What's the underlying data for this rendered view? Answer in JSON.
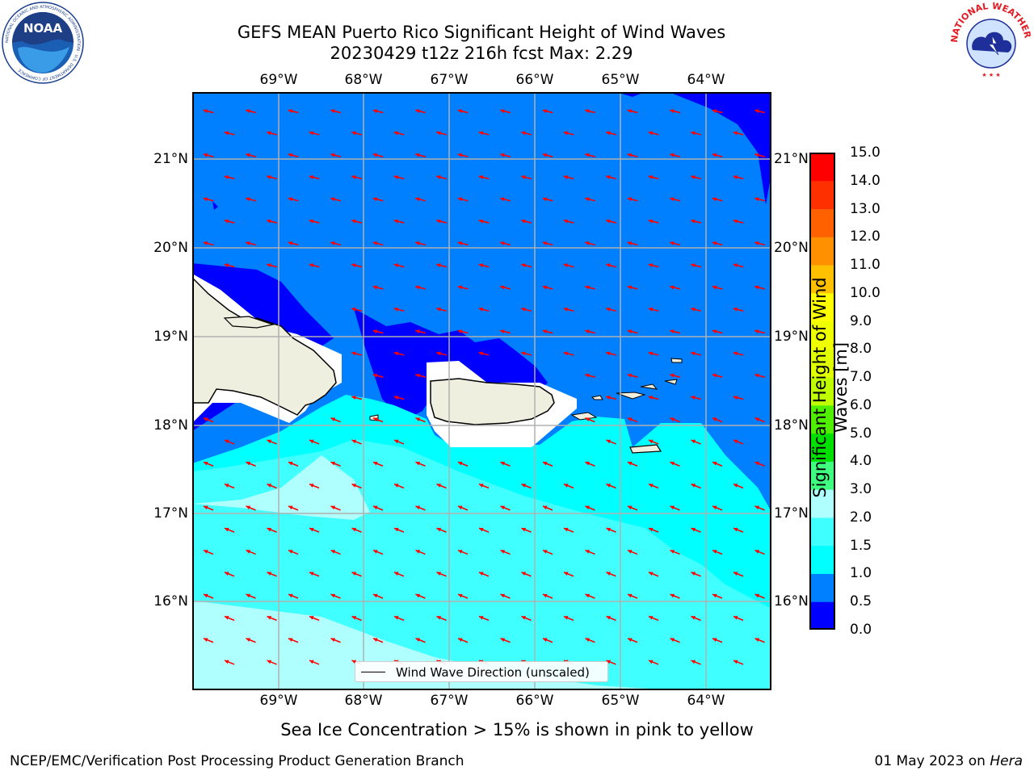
{
  "header": {
    "title_line1": "GEFS MEAN Puerto Rico Significant Height of Wind Waves",
    "title_line2": "20230429 t12z 216h fcst   Max: 2.29"
  },
  "logos": {
    "left": {
      "name": "NOAA",
      "text": "NOAA",
      "ring_text": "NATIONAL OCEANIC AND ATMOSPHERIC ADMINISTRATION · U.S. DEPARTMENT OF COMMERCE"
    },
    "right": {
      "name": "National Weather Service",
      "ring_text": "NATIONAL WEATHER SERVICE"
    }
  },
  "map": {
    "lon_labels": [
      "69°W",
      "68°W",
      "67°W",
      "66°W",
      "65°W",
      "64°W"
    ],
    "lat_labels": [
      "21°N",
      "20°N",
      "19°N",
      "18°N",
      "17°N",
      "16°N"
    ],
    "legend_label": "Wind Wave Direction (unscaled)",
    "colors": {
      "land": "#efefe0",
      "arrow": "#ff0000",
      "coast": "#000000",
      "grid": "#b0b0b0"
    }
  },
  "colorbar": {
    "label_line1": "Significant Height of Wind",
    "label_line2": "Waves [m]",
    "ticks": [
      "15.0",
      "14.0",
      "13.0",
      "12.0",
      "11.0",
      "10.0",
      "9.0",
      "8.0",
      "7.0",
      "6.0",
      "5.0",
      "4.0",
      "3.0",
      "2.0",
      "1.5",
      "1.0",
      "0.5",
      "0.0"
    ],
    "levels": [
      {
        "from": 0.0,
        "to": 0.5,
        "color": "#0000ff"
      },
      {
        "from": 0.5,
        "to": 1.0,
        "color": "#0080ff"
      },
      {
        "from": 1.0,
        "to": 1.5,
        "color": "#00ffff"
      },
      {
        "from": 1.5,
        "to": 2.0,
        "color": "#40ffff"
      },
      {
        "from": 2.0,
        "to": 3.0,
        "color": "#b0ffff"
      },
      {
        "from": 3.0,
        "to": 4.0,
        "color": "#40ff80"
      },
      {
        "from": 4.0,
        "to": 5.0,
        "color": "#00e000"
      },
      {
        "from": 5.0,
        "to": 6.0,
        "color": "#50ef00"
      },
      {
        "from": 6.0,
        "to": 7.0,
        "color": "#c0ff00"
      },
      {
        "from": 7.0,
        "to": 8.0,
        "color": "#e0ff00"
      },
      {
        "from": 8.0,
        "to": 9.0,
        "color": "#f0ff00"
      },
      {
        "from": 9.0,
        "to": 10.0,
        "color": "#ffff00"
      },
      {
        "from": 10.0,
        "to": 11.0,
        "color": "#ffc000"
      },
      {
        "from": 11.0,
        "to": 12.0,
        "color": "#ff9000"
      },
      {
        "from": 12.0,
        "to": 13.0,
        "color": "#ff6000"
      },
      {
        "from": 13.0,
        "to": 14.0,
        "color": "#ff3000"
      },
      {
        "from": 14.0,
        "to": 15.0,
        "color": "#ff0000"
      }
    ]
  },
  "footer": {
    "subtitle": "Sea Ice Concentration > 15% is shown in pink to yellow",
    "left": "NCEP/EMC/Verification Post Processing Product Generation Branch",
    "right_date": "01 May 2023 on ",
    "right_machine": "Hera"
  }
}
